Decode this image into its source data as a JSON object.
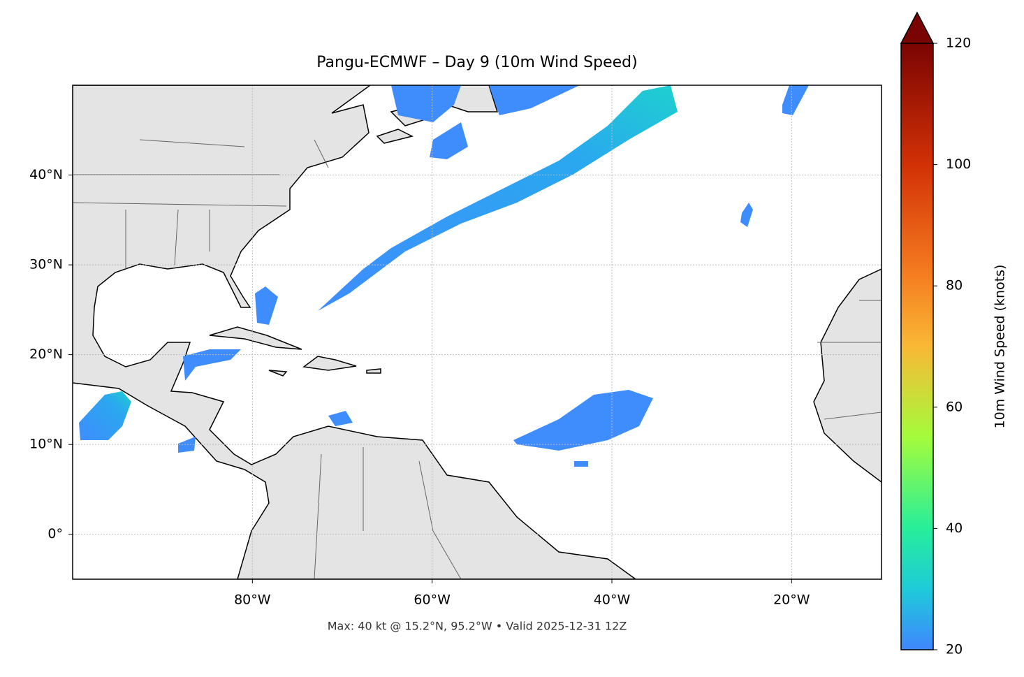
{
  "map": {
    "title": "Pangu-ECMWF – Day 9 (10m Wind Speed)",
    "footer": "Max: 40 kt @ 15.2°N, 95.2°W • Valid 2025-12-31 12Z",
    "lonlim": [
      -100,
      -10
    ],
    "latlim": [
      -5,
      50
    ],
    "lonticks": [
      {
        "value": -80,
        "label": "80°W"
      },
      {
        "value": -60,
        "label": "60°W"
      },
      {
        "value": -40,
        "label": "40°W"
      },
      {
        "value": -20,
        "label": "20°W"
      }
    ],
    "latticks": [
      {
        "value": 0,
        "label": "0°"
      },
      {
        "value": 10,
        "label": "10°N"
      },
      {
        "value": 20,
        "label": "20°N"
      },
      {
        "value": 30,
        "label": "30°N"
      },
      {
        "value": 40,
        "label": "40°N"
      }
    ],
    "grid": true,
    "colorbar": {
      "label": "10m Wind Speed (knots)",
      "lim": [
        20,
        120
      ],
      "ticks": [
        20,
        40,
        60,
        80,
        100,
        120
      ]
    }
  }
}
